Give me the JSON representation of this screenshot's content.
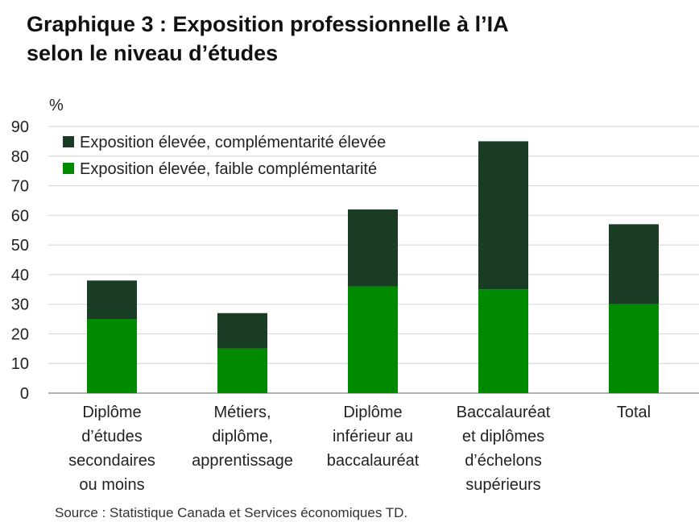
{
  "title_lines": [
    "Graphique 3 : Exposition professionnelle à l’IA",
    "selon le niveau d’études"
  ],
  "source": "Source : Statistique Canada et Services économiques TD.",
  "chart_data": {
    "type": "bar",
    "stacked": true,
    "ylabel": "%",
    "ylim": [
      0,
      90
    ],
    "yticks": [
      0,
      10,
      20,
      30,
      40,
      50,
      60,
      70,
      80,
      90
    ],
    "grid": true,
    "legend_position": "top-left",
    "categories": [
      [
        "Diplôme",
        "d’études",
        "secondaires",
        "ou moins"
      ],
      [
        "Métiers,",
        "diplôme,",
        "apprentissage"
      ],
      [
        "Diplôme",
        "inférieur au",
        "baccalauréat"
      ],
      [
        "Baccalauréat",
        "et diplômes",
        "d’échelons",
        "supérieurs"
      ],
      [
        "Total"
      ]
    ],
    "series": [
      {
        "name": "Exposition élevée, faible complémentarité",
        "color": "#008a00",
        "values": [
          25,
          15,
          36,
          35,
          30
        ]
      },
      {
        "name": "Exposition élevée, complémentarité élevée",
        "color": "#1a3c25",
        "values": [
          13,
          12,
          26,
          50,
          27
        ]
      }
    ]
  }
}
